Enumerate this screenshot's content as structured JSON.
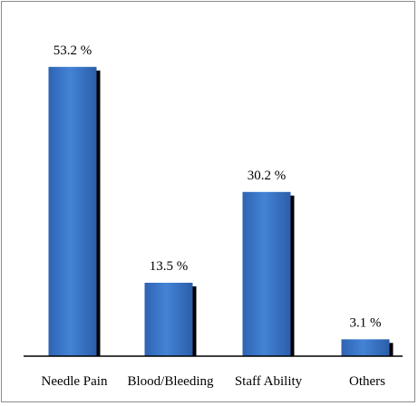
{
  "chart_data": {
    "type": "bar",
    "title": "",
    "xlabel": "",
    "ylabel": "",
    "categories": [
      "Needle Pain",
      "Blood/Bleeding",
      "Staff Ability",
      "Others"
    ],
    "values": [
      53.2,
      13.5,
      30.2,
      3.1
    ],
    "data_labels": [
      "53.2 %",
      "13.5 %",
      "30.2 %",
      "3.1 %"
    ],
    "ylim": [
      0,
      60
    ],
    "grid": false,
    "legend": "none",
    "bar_color": "#3a72c4",
    "shadow_color": "#000000"
  }
}
